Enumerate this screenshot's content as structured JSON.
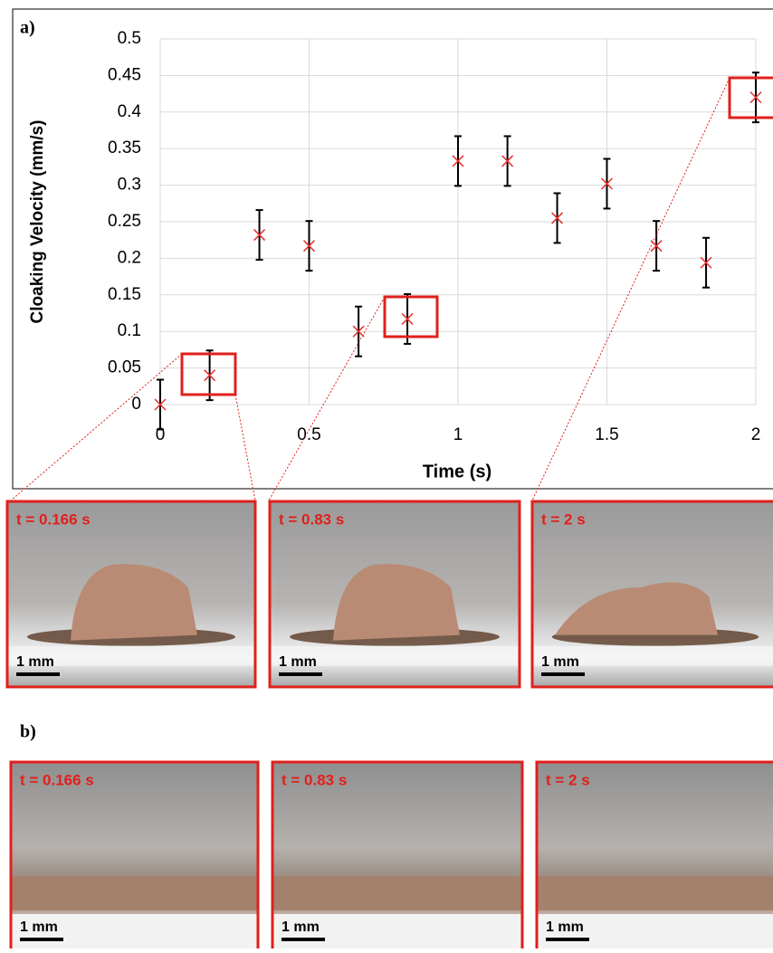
{
  "chart_data": {
    "type": "scatter",
    "panel_label": "a)",
    "xlabel": "Time (s)",
    "ylabel": "Cloaking Velocity (mm/s)",
    "x": [
      0,
      0.166,
      0.333,
      0.5,
      0.666,
      0.83,
      1,
      1.166,
      1.333,
      1.5,
      1.666,
      1.833,
      2
    ],
    "values": [
      0,
      0.04,
      0.232,
      0.217,
      0.1,
      0.117,
      0.333,
      0.333,
      0.255,
      0.302,
      0.217,
      0.194,
      0.42
    ],
    "errors": [
      0.034,
      0.034,
      0.034,
      0.034,
      0.034,
      0.034,
      0.034,
      0.034,
      0.034,
      0.034,
      0.034,
      0.034,
      0.034
    ],
    "color": "#e8302c",
    "error_color": "#000000",
    "xlim": [
      0,
      2
    ],
    "ylim": [
      0,
      0.5
    ],
    "xticks": [
      0,
      0.5,
      1,
      1.5,
      2
    ],
    "yticks": [
      0,
      0.05,
      0.1,
      0.15,
      0.2,
      0.25,
      0.3,
      0.35,
      0.4,
      0.45,
      0.5
    ],
    "grid": true
  },
  "panels_a": [
    {
      "time_label": "t = 0.166 s",
      "scale_label": "1 mm"
    },
    {
      "time_label": "t = 0.83 s",
      "scale_label": "1 mm"
    },
    {
      "time_label": "t = 2 s",
      "scale_label": "1 mm"
    }
  ],
  "panel_b_label": "b)",
  "panels_b": [
    {
      "time_label": "t = 0.166 s",
      "scale_label": "1 mm"
    },
    {
      "time_label": "t = 0.83 s",
      "scale_label": "1 mm"
    },
    {
      "time_label": "t = 2 s",
      "scale_label": "1 mm"
    }
  ]
}
